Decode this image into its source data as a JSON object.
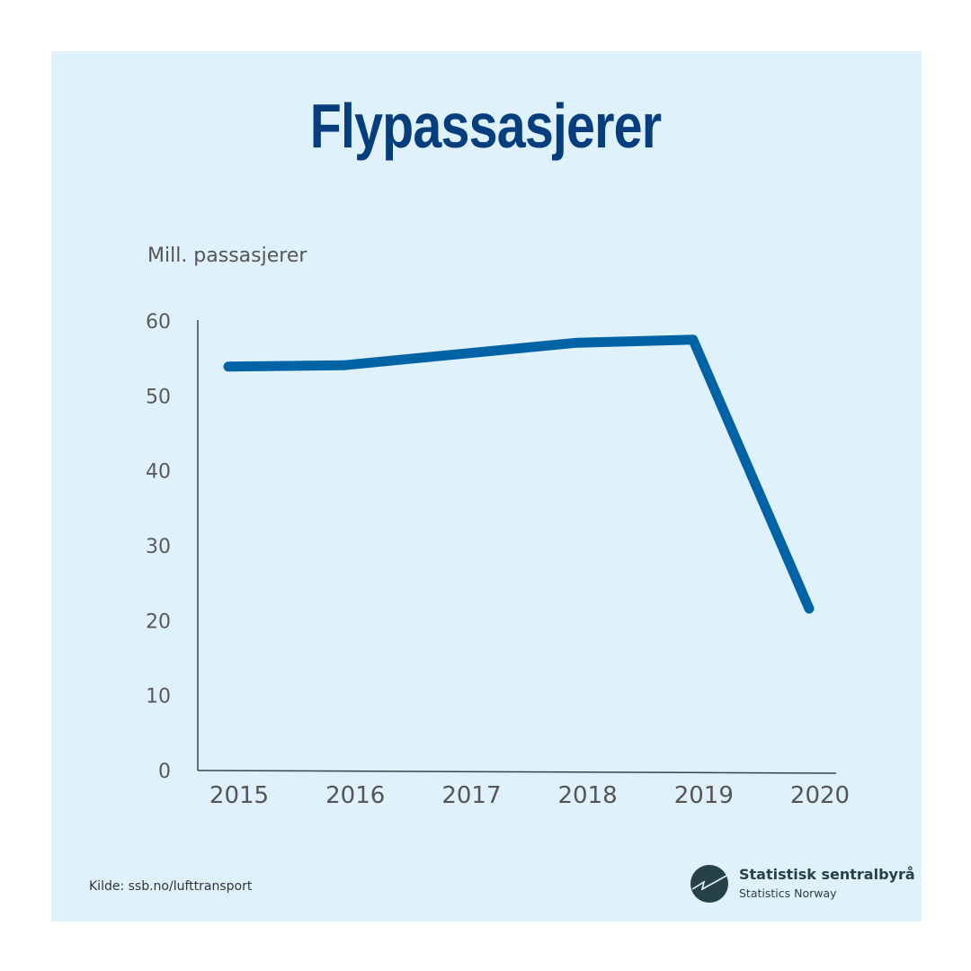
{
  "header": {
    "title": "Flypassasjerer"
  },
  "axis": {
    "unit_label": "Mill. passasjerer"
  },
  "footer": {
    "source": "Kilde: ssb.no/lufttransport",
    "logo_name": "Statistisk sentralbyrå",
    "logo_subtitle": "Statistics Norway"
  },
  "colors": {
    "background": "#dff1fb",
    "title": "#063e7d",
    "line": "#0063a6",
    "axis": "#2f4a50",
    "logo": "#274247"
  },
  "chart_data": {
    "type": "line",
    "title": "Flypassasjerer",
    "xlabel": "",
    "ylabel": "Mill. passasjerer",
    "categories": [
      "2015",
      "2016",
      "2017",
      "2018",
      "2019",
      "2020"
    ],
    "series": [
      {
        "name": "Flypassasjerer",
        "values": [
          53.9,
          54.1,
          55.6,
          57.1,
          57.5,
          21.6
        ]
      }
    ],
    "yticks": [
      0,
      10,
      20,
      30,
      40,
      50,
      60
    ],
    "ylim": [
      0,
      60
    ],
    "grid": false,
    "legend": "none",
    "source": "Kilde: ssb.no/lufttransport"
  }
}
